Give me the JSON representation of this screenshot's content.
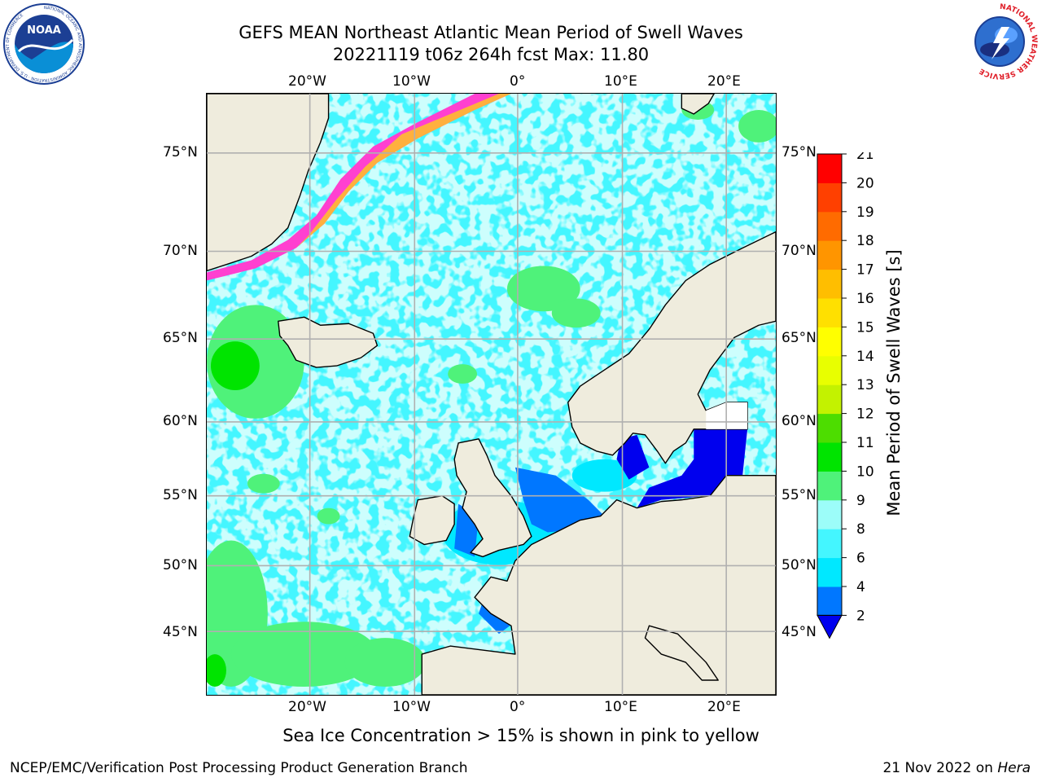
{
  "title": {
    "line1": "GEFS MEAN Northeast Atlantic Mean Period of Swell Waves",
    "line2": "20221119 t06z 264h fcst   Max: 11.80"
  },
  "axes": {
    "lon_top": [
      "20°W",
      "10°W",
      "0°",
      "10°E",
      "20°E"
    ],
    "lon_bottom": [
      "20°W",
      "10°W",
      "0°",
      "10°E",
      "20°E"
    ],
    "lat_left": [
      "75°N",
      "70°N",
      "65°N",
      "60°N",
      "55°N",
      "50°N",
      "45°N"
    ],
    "lat_right": [
      "75°N",
      "70°N",
      "65°N",
      "60°N",
      "55°N",
      "50°N",
      "45°N"
    ]
  },
  "colorbar": {
    "label": "Mean Period of Swell Waves [s]",
    "ticks": [
      "2",
      "4",
      "6",
      "8",
      "9",
      "10",
      "11",
      "12",
      "13",
      "14",
      "15",
      "16",
      "17",
      "18",
      "19",
      "20",
      "21"
    ],
    "colors": [
      "#0077ff",
      "#00e8ff",
      "#44f6ff",
      "#9cfdf9",
      "#4ff27a",
      "#00e400",
      "#4ddd00",
      "#c3f200",
      "#e8ff00",
      "#ffff00",
      "#ffe000",
      "#ffbe00",
      "#ff9500",
      "#ff6b00",
      "#ff4000",
      "#ff0000"
    ],
    "extend_color": "#0000ee"
  },
  "chart_data": {
    "type": "heatmap",
    "title": "GEFS MEAN Northeast Atlantic Mean Period of Swell Waves",
    "subtitle": "20221119 t06z 264h fcst   Max: 11.80",
    "max": 11.8,
    "units": "s",
    "lon_range": [
      -30,
      25
    ],
    "lat_range": [
      40.8,
      78.2
    ],
    "color_levels": [
      2,
      4,
      6,
      8,
      9,
      10,
      11,
      12,
      13,
      14,
      15,
      16,
      17,
      18,
      19,
      20,
      21
    ]
  },
  "note": "Sea Ice Concentration > 15% is shown in pink to yellow",
  "footer": {
    "left": "NCEP/EMC/Verification Post Processing Product Generation Branch",
    "right_date": "21 Nov 2022 on ",
    "right_machine": "Hera"
  },
  "logos": {
    "noaa_text": "NOAA",
    "noaa_ring": "NATIONAL OCEANIC AND ATMOSPHERIC ADMINISTRATION · U.S. DEPARTMENT OF COMMERCE",
    "nws_ring": "NATIONAL WEATHER SERVICE"
  },
  "colors": {
    "land": "#efecdd",
    "grid": "#b0b0b0",
    "ocean_base": "#44f6ff"
  }
}
